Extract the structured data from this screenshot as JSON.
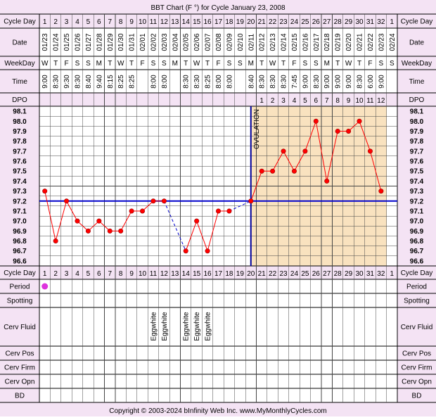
{
  "title": "BBT Chart (F °) for Cycle January 23, 2008",
  "footer": "Copyright © 2003-2024 bInfinity Web Inc.      www.MyMonthlyCycles.com",
  "colors": {
    "header_bg": "#f4e3f4",
    "post_ovulation_bg": "#f9e2bf",
    "temp_line": "#ff0000",
    "coverline": "#0000cc",
    "ovulation_line": "#000099",
    "period_dot": "#dd33dd"
  },
  "row_labels": {
    "cycle_day": "Cycle Day",
    "date": "Date",
    "weekday": "WeekDay",
    "time": "Time",
    "dpo": "DPO",
    "period": "Period",
    "spotting": "Spotting",
    "cerv_fluid": "Cerv Fluid",
    "cerv_pos": "Cerv Pos",
    "cerv_firm": "Cerv Firm",
    "cerv_opn": "Cerv Opn",
    "bd": "BD"
  },
  "ovulation_label": "OVULATION",
  "chart_data": {
    "type": "line",
    "title": "BBT Chart (F °) for Cycle January 23, 2008",
    "x": [
      1,
      2,
      3,
      4,
      5,
      6,
      7,
      8,
      9,
      10,
      11,
      12,
      13,
      14,
      15,
      16,
      17,
      18,
      19,
      20,
      21,
      22,
      23,
      24,
      25,
      26,
      27,
      28,
      29,
      30,
      31,
      32,
      1
    ],
    "dates": [
      "01/23",
      "01/24",
      "01/25",
      "01/26",
      "01/27",
      "01/28",
      "01/29",
      "01/30",
      "01/31",
      "02/01",
      "02/02",
      "02/03",
      "02/04",
      "02/05",
      "02/06",
      "02/07",
      "02/08",
      "02/09",
      "02/10",
      "02/11",
      "02/12",
      "02/13",
      "02/14",
      "02/15",
      "02/16",
      "02/17",
      "02/18",
      "02/19",
      "02/20",
      "02/21",
      "02/22",
      "02/23",
      "02/24"
    ],
    "weekdays": [
      "W",
      "T",
      "F",
      "S",
      "S",
      "M",
      "T",
      "W",
      "T",
      "F",
      "S",
      "S",
      "M",
      "T",
      "W",
      "T",
      "F",
      "S",
      "S",
      "M",
      "T",
      "W",
      "T",
      "F",
      "S",
      "S",
      "M",
      "T",
      "W",
      "T",
      "F",
      "S",
      "S"
    ],
    "times": [
      "9:00",
      "8:30",
      "9:30",
      "8:30",
      "8:40",
      "9:40",
      "8:15",
      "8:25",
      "8:25",
      "",
      "8:00",
      "8:00",
      "",
      "8:30",
      "8:30",
      "8:25",
      "8:00",
      "8:00",
      "",
      "8:40",
      "8:30",
      "8:30",
      "8:30",
      "7:45",
      "9:00",
      "8:30",
      "9:00",
      "9:00",
      "9:00",
      "8:30",
      "6:00",
      "9:00",
      ""
    ],
    "dpo": [
      "",
      "",
      "",
      "",
      "",
      "",
      "",
      "",
      "",
      "",
      "",
      "",
      "",
      "",
      "",
      "",
      "",
      "",
      "",
      "",
      "1",
      "2",
      "3",
      "4",
      "5",
      "6",
      "7",
      "8",
      "9",
      "10",
      "11",
      "12",
      ""
    ],
    "temperatures": [
      97.3,
      96.8,
      97.2,
      97.0,
      96.9,
      97.0,
      96.9,
      96.9,
      97.1,
      97.1,
      97.2,
      97.2,
      null,
      96.7,
      97.0,
      96.7,
      97.1,
      97.1,
      null,
      97.2,
      97.5,
      97.5,
      97.7,
      97.5,
      97.7,
      98.0,
      97.4,
      97.9,
      97.9,
      98.0,
      97.7,
      97.3,
      null
    ],
    "y_ticks": [
      "98.1",
      "98.0",
      "97.9",
      "97.8",
      "97.7",
      "97.6",
      "97.5",
      "97.4",
      "97.3",
      "97.2",
      "97.1",
      "97.0",
      "96.9",
      "96.8",
      "96.7",
      "96.6"
    ],
    "ylim": [
      96.6,
      98.1
    ],
    "coverline": 97.2,
    "ovulation_day": 20,
    "period": [
      1,
      33
    ],
    "cerv_fluid": [
      "",
      "",
      "",
      "",
      "",
      "",
      "",
      "",
      "",
      "",
      "Eggwhite",
      "Eggwhite",
      "",
      "Eggwhite",
      "Eggwhite",
      "Eggwhite",
      "",
      "",
      "",
      "",
      "",
      "",
      "",
      "",
      "",
      "",
      "",
      "",
      "",
      "",
      "",
      "",
      ""
    ]
  }
}
